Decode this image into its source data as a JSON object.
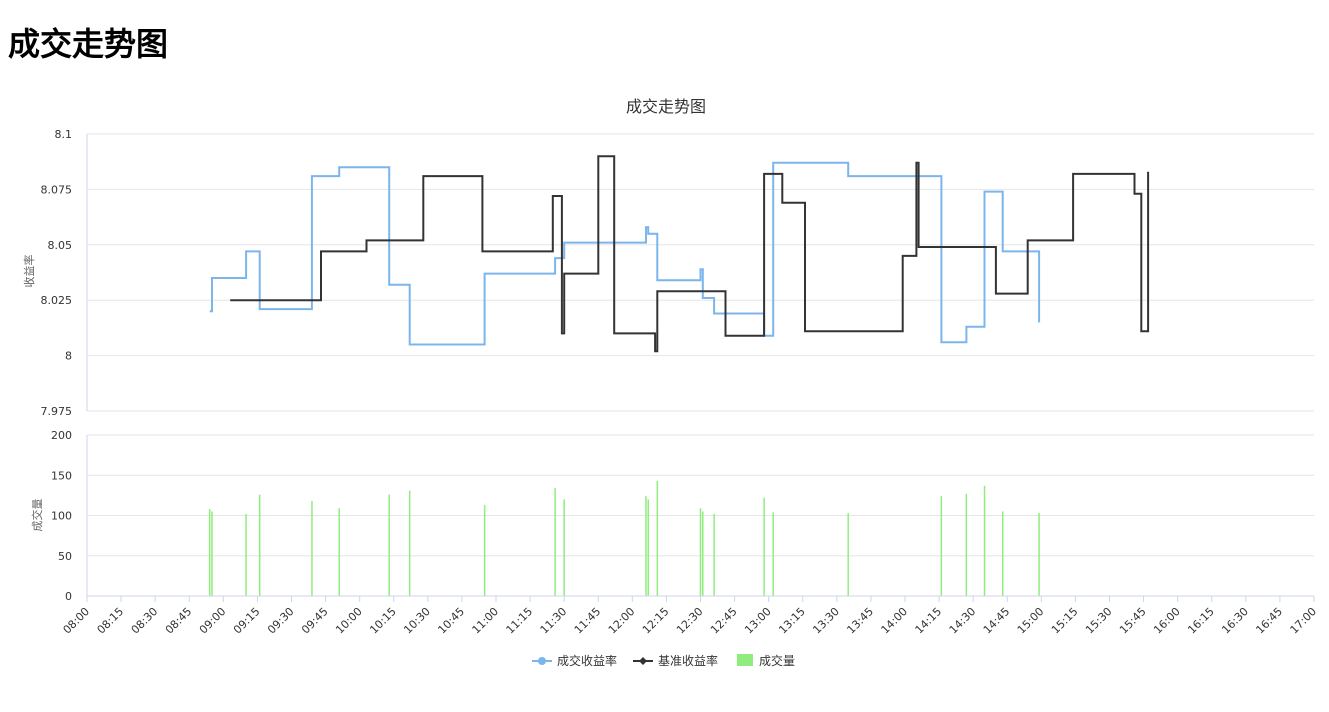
{
  "page": {
    "title": "成交走势图"
  },
  "chart_data": [
    {
      "type": "line",
      "title": "成交走势图",
      "ylabel": "收益率",
      "ylim": [
        7.975,
        8.1
      ],
      "y_ticks": [
        "7.975",
        "8",
        "8.025",
        "8.05",
        "8.075",
        "8.1"
      ],
      "x_ticks": [
        "08:00",
        "08:15",
        "08:30",
        "08:45",
        "09:00",
        "09:15",
        "09:30",
        "09:45",
        "10:00",
        "10:15",
        "10:30",
        "10:45",
        "11:00",
        "11:15",
        "11:30",
        "11:45",
        "12:00",
        "12:15",
        "12:30",
        "12:45",
        "13:00",
        "13:15",
        "13:30",
        "13:45",
        "14:00",
        "14:15",
        "14:30",
        "14:45",
        "15:00",
        "15:15",
        "15:30",
        "15:45",
        "16:00",
        "16:15",
        "16:30",
        "16:45",
        "17:00"
      ],
      "xlim": [
        "08:00",
        "17:00"
      ],
      "grid": true,
      "legend_position": "bottom-center",
      "series": [
        {
          "name": "成交收益率",
          "color": "#7cb5ec",
          "step": true,
          "points": [
            [
              "08:54",
              8.02
            ],
            [
              "08:55",
              8.035
            ],
            [
              "09:10",
              8.047
            ],
            [
              "09:16",
              8.021
            ],
            [
              "09:39",
              8.081
            ],
            [
              "09:51",
              8.085
            ],
            [
              "10:13",
              8.032
            ],
            [
              "10:22",
              8.005
            ],
            [
              "10:55",
              8.037
            ],
            [
              "11:26",
              8.044
            ],
            [
              "11:30",
              8.051
            ],
            [
              "12:06",
              8.058
            ],
            [
              "12:07",
              8.055
            ],
            [
              "12:11",
              8.034
            ],
            [
              "12:30",
              8.039
            ],
            [
              "12:31",
              8.026
            ],
            [
              "12:36",
              8.019
            ],
            [
              "12:58",
              8.009
            ],
            [
              "13:02",
              8.087
            ],
            [
              "13:35",
              8.081
            ],
            [
              "14:16",
              8.006
            ],
            [
              "14:27",
              8.013
            ],
            [
              "14:35",
              8.074
            ],
            [
              "14:43",
              8.047
            ],
            [
              "14:59",
              8.015
            ]
          ]
        },
        {
          "name": "基准收益率",
          "color": "#333333",
          "step": true,
          "points": [
            [
              "09:03",
              8.025
            ],
            [
              "09:43",
              8.047
            ],
            [
              "10:03",
              8.052
            ],
            [
              "10:28",
              8.081
            ],
            [
              "10:54",
              8.047
            ],
            [
              "11:25",
              8.072
            ],
            [
              "11:29",
              8.01
            ],
            [
              "11:30",
              8.037
            ],
            [
              "11:45",
              8.09
            ],
            [
              "11:52",
              8.01
            ],
            [
              "12:10",
              8.002
            ],
            [
              "12:11",
              8.029
            ],
            [
              "12:41",
              8.009
            ],
            [
              "12:58",
              8.082
            ],
            [
              "13:06",
              8.069
            ],
            [
              "13:16",
              8.011
            ],
            [
              "13:59",
              8.045
            ],
            [
              "14:05",
              8.087
            ],
            [
              "14:06",
              8.049
            ],
            [
              "14:40",
              8.028
            ],
            [
              "14:54",
              8.052
            ],
            [
              "15:14",
              8.082
            ],
            [
              "15:41",
              8.073
            ],
            [
              "15:44",
              8.011
            ],
            [
              "15:47",
              8.083
            ]
          ]
        }
      ]
    },
    {
      "type": "bar",
      "ylabel": "成交量",
      "ylim": [
        0,
        200
      ],
      "y_ticks": [
        "0",
        "50",
        "100",
        "150",
        "200"
      ],
      "grid": true,
      "series": [
        {
          "name": "成交量",
          "color": "#90ed7d",
          "points": [
            [
              "08:54",
              108
            ],
            [
              "08:55",
              105
            ],
            [
              "09:10",
              102
            ],
            [
              "09:16",
              126
            ],
            [
              "09:39",
              118
            ],
            [
              "09:51",
              109
            ],
            [
              "10:13",
              126
            ],
            [
              "10:22",
              131
            ],
            [
              "10:55",
              113
            ],
            [
              "11:26",
              134
            ],
            [
              "11:30",
              120
            ],
            [
              "12:06",
              124
            ],
            [
              "12:07",
              120
            ],
            [
              "12:11",
              143
            ],
            [
              "12:30",
              109
            ],
            [
              "12:31",
              105
            ],
            [
              "12:36",
              102
            ],
            [
              "12:58",
              122
            ],
            [
              "13:02",
              104
            ],
            [
              "13:35",
              103
            ],
            [
              "14:16",
              124
            ],
            [
              "14:27",
              127
            ],
            [
              "14:35",
              137
            ],
            [
              "14:43",
              105
            ],
            [
              "14:59",
              103
            ]
          ]
        }
      ]
    }
  ]
}
